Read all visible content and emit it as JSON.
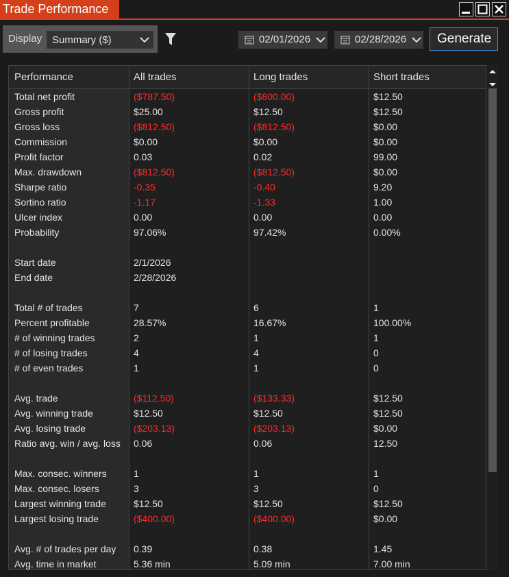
{
  "window": {
    "title": "Trade Performance"
  },
  "toolbar": {
    "display_label": "Display",
    "display_value": "Summary ($)",
    "start_date": "02/01/2026",
    "end_date": "02/28/2026",
    "generate": "Generate"
  },
  "table": {
    "columns": [
      "Performance",
      "All trades",
      "Long trades",
      "Short trades"
    ],
    "sections": [
      [
        {
          "label": "Total net profit",
          "values": [
            "($787.50)",
            "($800.00)",
            "$12.50"
          ]
        },
        {
          "label": "Gross profit",
          "values": [
            "$25.00",
            "$12.50",
            "$12.50"
          ]
        },
        {
          "label": "Gross loss",
          "values": [
            "($812.50)",
            "($812.50)",
            "$0.00"
          ]
        },
        {
          "label": "Commission",
          "values": [
            "$0.00",
            "$0.00",
            "$0.00"
          ]
        },
        {
          "label": "Profit factor",
          "values": [
            "0.03",
            "0.02",
            "99.00"
          ]
        },
        {
          "label": "Max. drawdown",
          "values": [
            "($812.50)",
            "($812.50)",
            "$0.00"
          ]
        },
        {
          "label": "Sharpe ratio",
          "values": [
            "-0.35",
            "-0.40",
            "9.20"
          ]
        },
        {
          "label": "Sortino ratio",
          "values": [
            "-1.17",
            "-1.33",
            "1.00"
          ]
        },
        {
          "label": "Ulcer index",
          "values": [
            "0.00",
            "0.00",
            "0.00"
          ]
        },
        {
          "label": "Probability",
          "values": [
            "97.06%",
            "97.42%",
            "0.00%"
          ]
        }
      ],
      [
        {
          "label": "Start date",
          "values": [
            "2/1/2026"
          ]
        },
        {
          "label": "End date",
          "values": [
            "2/28/2026"
          ]
        }
      ],
      [
        {
          "label": "Total # of trades",
          "values": [
            "7",
            "6",
            "1"
          ]
        },
        {
          "label": "Percent profitable",
          "values": [
            "28.57%",
            "16.67%",
            "100.00%"
          ]
        },
        {
          "label": "# of winning trades",
          "values": [
            "2",
            "1",
            "1"
          ]
        },
        {
          "label": "# of losing trades",
          "values": [
            "4",
            "4",
            "0"
          ]
        },
        {
          "label": "# of even trades",
          "values": [
            "1",
            "1",
            "0"
          ]
        }
      ],
      [
        {
          "label": "Avg. trade",
          "values": [
            "($112.50)",
            "($133.33)",
            "$12.50"
          ]
        },
        {
          "label": "Avg. winning trade",
          "values": [
            "$12.50",
            "$12.50",
            "$12.50"
          ]
        },
        {
          "label": "Avg. losing trade",
          "values": [
            "($203.13)",
            "($203.13)",
            "$0.00"
          ]
        },
        {
          "label": "Ratio avg. win / avg. loss",
          "values": [
            "0.06",
            "0.06",
            "12.50"
          ]
        }
      ],
      [
        {
          "label": "Max. consec. winners",
          "values": [
            "1",
            "1",
            "1"
          ]
        },
        {
          "label": "Max. consec. losers",
          "values": [
            "3",
            "3",
            "0"
          ]
        },
        {
          "label": "Largest winning trade",
          "values": [
            "$12.50",
            "$12.50",
            "$12.50"
          ]
        },
        {
          "label": "Largest losing trade",
          "values": [
            "($400.00)",
            "($400.00)",
            "$0.00"
          ]
        }
      ],
      [
        {
          "label": "Avg. # of trades per day",
          "values": [
            "0.39",
            "0.38",
            "1.45"
          ]
        },
        {
          "label": "Avg. time in market",
          "values": [
            "5.36 min",
            "5.09 min",
            "7.00 min"
          ]
        }
      ]
    ]
  }
}
